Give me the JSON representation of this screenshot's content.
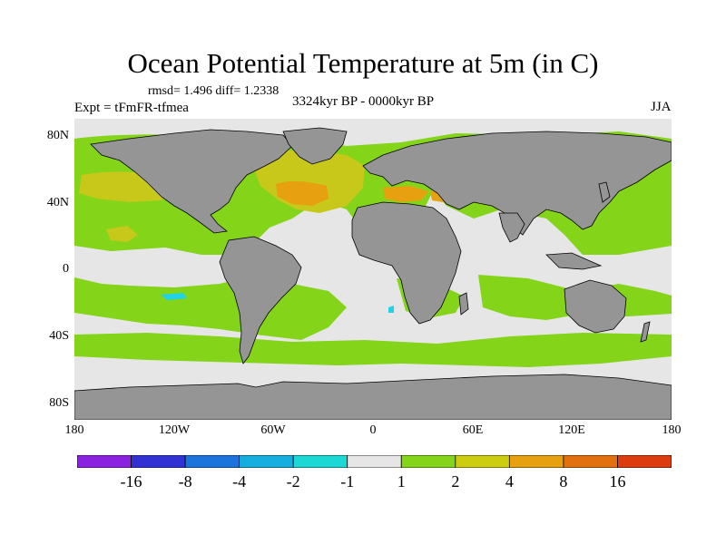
{
  "title": "Ocean Potential Temperature at 5m (in C)",
  "stats": "rmsd= 1.496  diff= 1.2338",
  "experiment": "Expt = tFmFR-tfmea",
  "period": "3324kyr BP - 0000kyr BP",
  "season": "JJA",
  "latitude_labels": [
    "80N",
    "40N",
    "0",
    "40S",
    "80S"
  ],
  "longitude_labels": [
    "180",
    "120W",
    "60W",
    "0",
    "60E",
    "120E",
    "180"
  ],
  "colorbar": {
    "bins": [
      {
        "color": "#8a22e0"
      },
      {
        "color": "#3232d4"
      },
      {
        "color": "#1a74dc"
      },
      {
        "color": "#16aee0"
      },
      {
        "color": "#1cd8d4"
      },
      {
        "color": "#e6e6e6"
      },
      {
        "color": "#84d41a"
      },
      {
        "color": "#cccc10"
      },
      {
        "color": "#e6a010"
      },
      {
        "color": "#e2700e"
      },
      {
        "color": "#dc3c0e"
      }
    ],
    "tick_labels": [
      "-16",
      "-8",
      "-4",
      "-2",
      "-1",
      "1",
      "2",
      "4",
      "8",
      "16"
    ]
  },
  "colors": {
    "land": "#959595",
    "neutral": "#e6e6e6",
    "green": "#84d41a",
    "yellow": "#c8c81a",
    "orange": "#e6a010",
    "cyan": "#22d2e6"
  }
}
